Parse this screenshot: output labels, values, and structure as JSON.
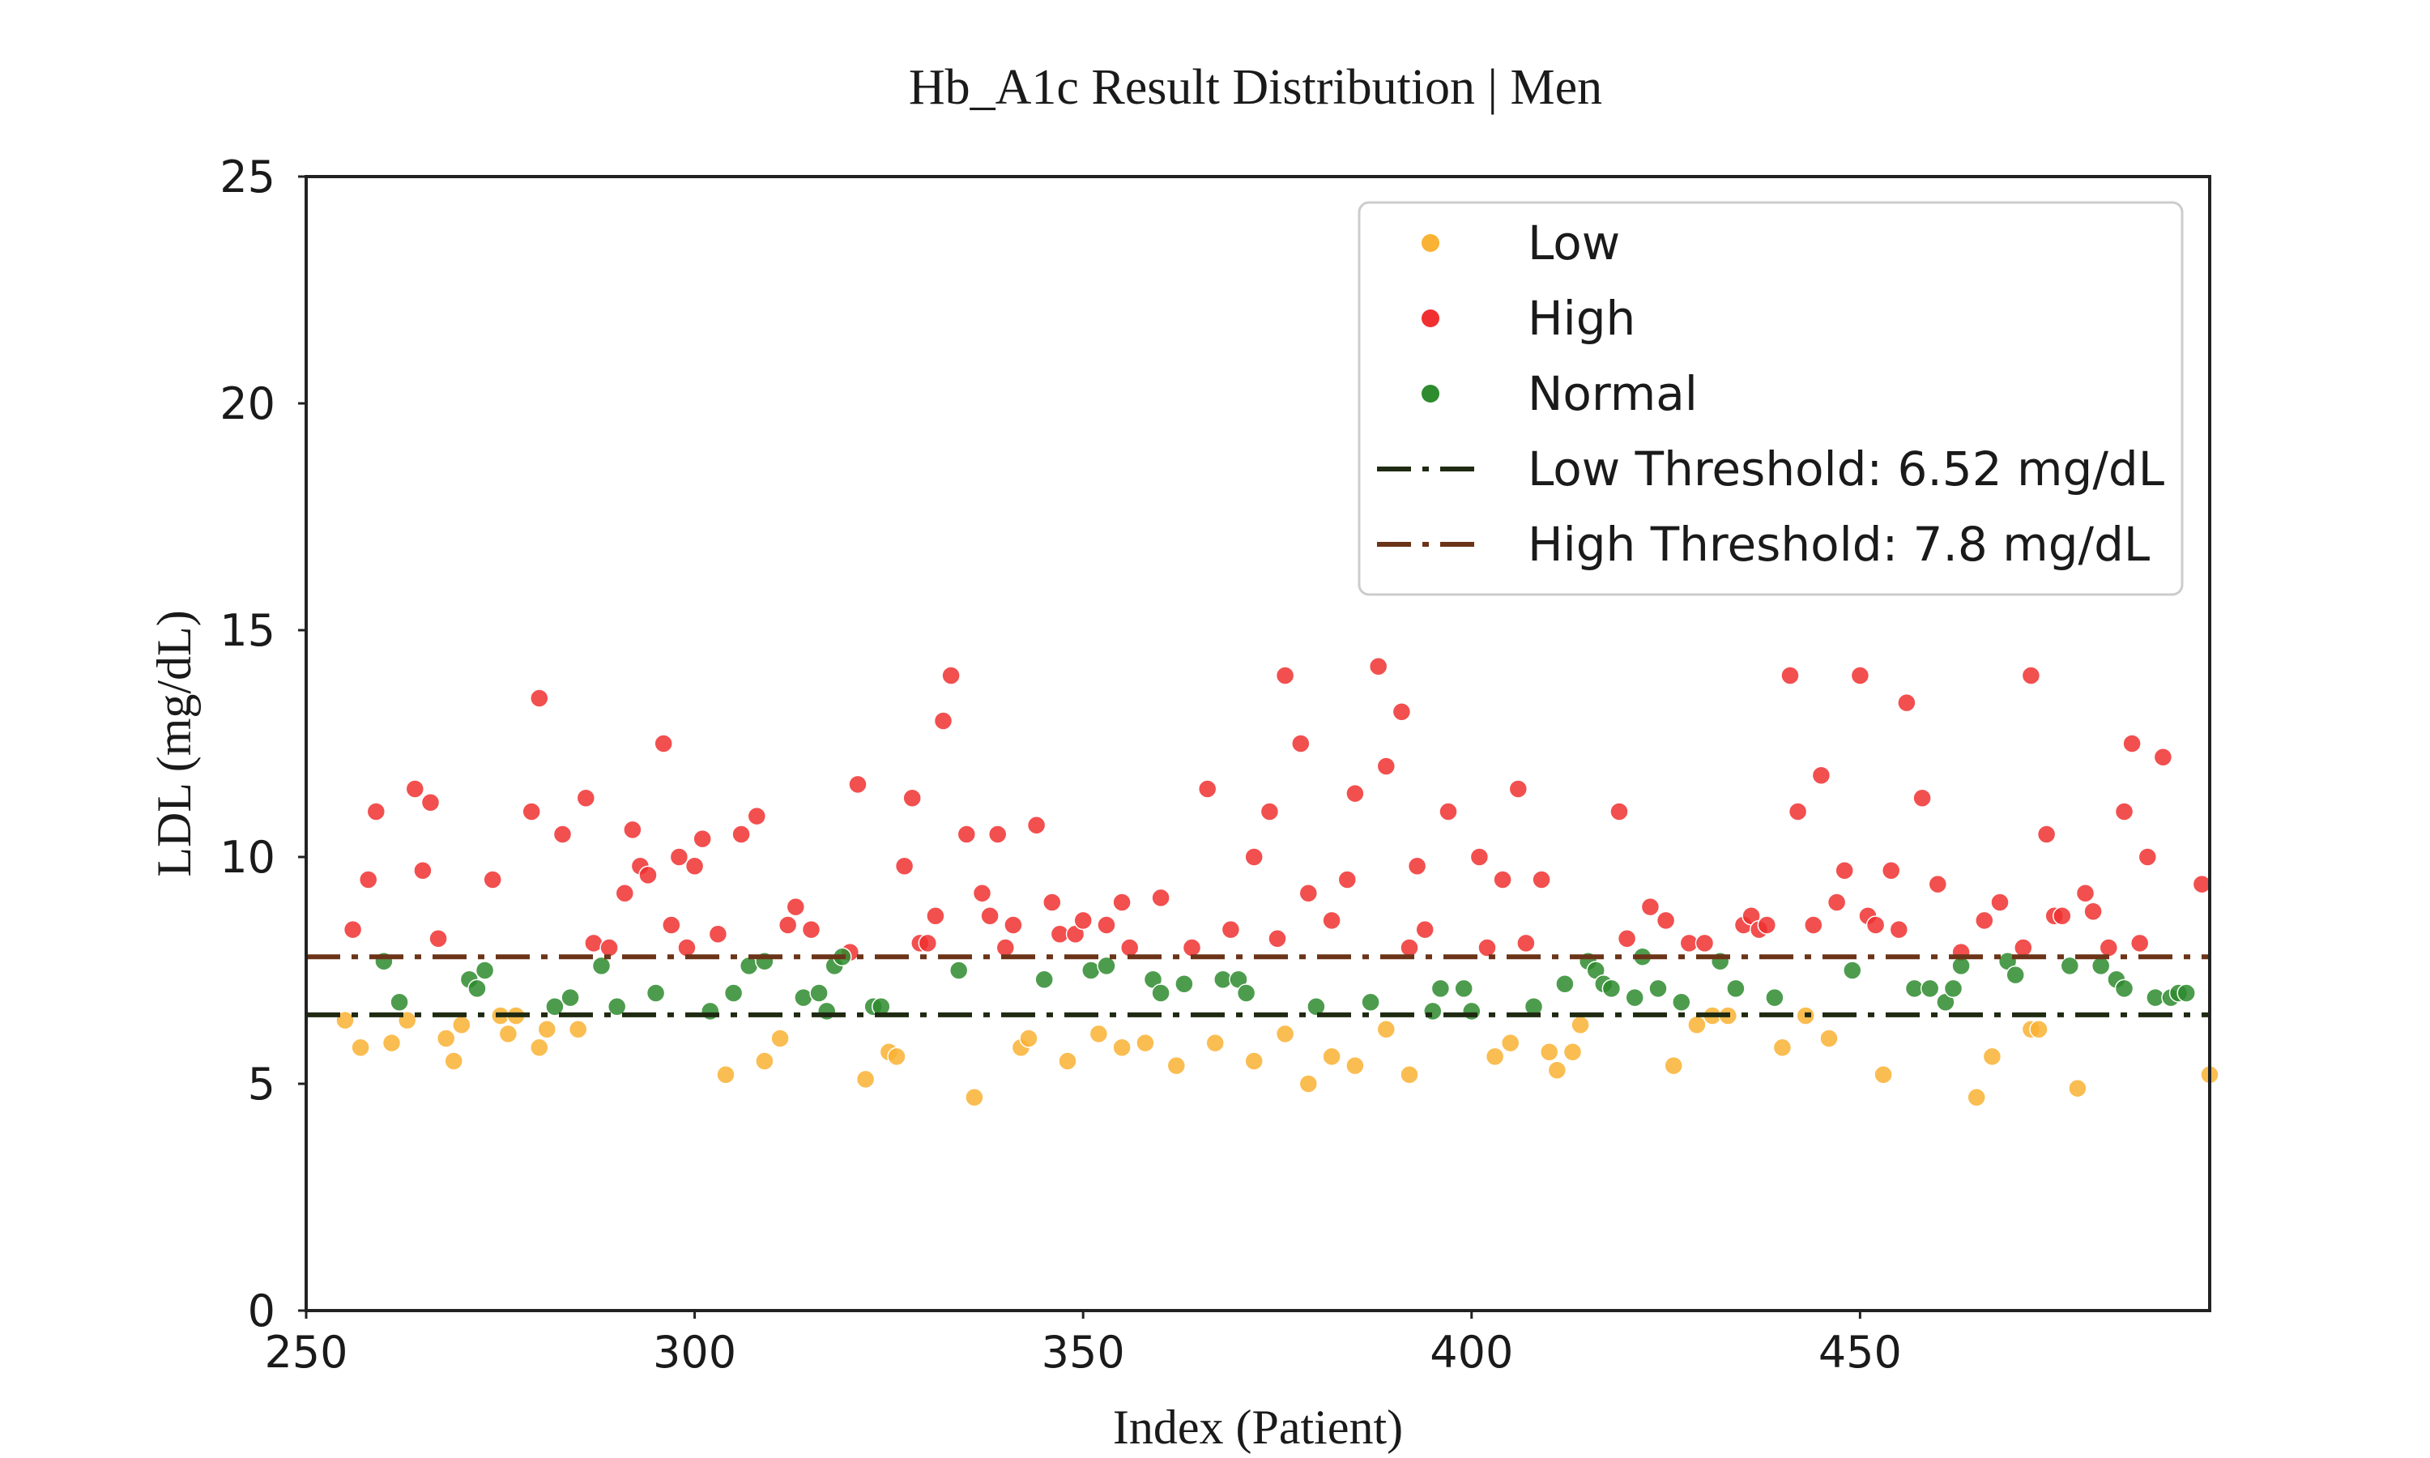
{
  "chart_data": {
    "type": "scatter",
    "title": "Hb_A1c Result Distribution | Men",
    "xlabel": "Index (Patient)",
    "ylabel": "LDL (mg/dL)",
    "xlim": [
      250,
      495
    ],
    "ylim": [
      0,
      25
    ],
    "xticks": [
      250,
      300,
      350,
      400,
      450
    ],
    "yticks": [
      0,
      5,
      10,
      15,
      20,
      25
    ],
    "grid": false,
    "legend_position": "top-right",
    "colors": {
      "Low": "#f9b233",
      "High": "#f03030",
      "Normal": "#2e8b2e",
      "low_threshold": "#1f2a12",
      "high_threshold": "#6b3418"
    },
    "series": [
      {
        "name": "Low",
        "points": [
          [
            255,
            6.4
          ],
          [
            257,
            5.8
          ],
          [
            261,
            5.9
          ],
          [
            263,
            6.4
          ],
          [
            268,
            6.0
          ],
          [
            269,
            5.5
          ],
          [
            270,
            6.3
          ],
          [
            275,
            6.5
          ],
          [
            276,
            6.1
          ],
          [
            277,
            6.5
          ],
          [
            280,
            5.8
          ],
          [
            281,
            6.2
          ],
          [
            285,
            6.2
          ],
          [
            304,
            5.2
          ],
          [
            309,
            5.5
          ],
          [
            311,
            6.0
          ],
          [
            322,
            5.1
          ],
          [
            325,
            5.7
          ],
          [
            326,
            5.6
          ],
          [
            336,
            4.7
          ],
          [
            342,
            5.8
          ],
          [
            343,
            6.0
          ],
          [
            348,
            5.5
          ],
          [
            352,
            6.1
          ],
          [
            355,
            5.8
          ],
          [
            358,
            5.9
          ],
          [
            362,
            5.4
          ],
          [
            367,
            5.9
          ],
          [
            372,
            5.5
          ],
          [
            376,
            6.1
          ],
          [
            379,
            5.0
          ],
          [
            382,
            5.6
          ],
          [
            385,
            5.4
          ],
          [
            389,
            6.2
          ],
          [
            392,
            5.2
          ],
          [
            403,
            5.6
          ],
          [
            405,
            5.9
          ],
          [
            410,
            5.7
          ],
          [
            411,
            5.3
          ],
          [
            413,
            5.7
          ],
          [
            414,
            6.3
          ],
          [
            426,
            5.4
          ],
          [
            429,
            6.3
          ],
          [
            431,
            6.5
          ],
          [
            433,
            6.5
          ],
          [
            440,
            5.8
          ],
          [
            443,
            6.5
          ],
          [
            446,
            6.0
          ],
          [
            453,
            5.2
          ],
          [
            465,
            4.7
          ],
          [
            467,
            5.6
          ],
          [
            472,
            6.2
          ],
          [
            473,
            6.2
          ],
          [
            478,
            4.9
          ],
          [
            495,
            5.2
          ]
        ]
      },
      {
        "name": "High",
        "points": [
          [
            256,
            8.4
          ],
          [
            258,
            9.5
          ],
          [
            259,
            11.0
          ],
          [
            264,
            11.5
          ],
          [
            265,
            9.7
          ],
          [
            266,
            11.2
          ],
          [
            267,
            8.2
          ],
          [
            274,
            9.5
          ],
          [
            279,
            11.0
          ],
          [
            280,
            13.5
          ],
          [
            283,
            10.5
          ],
          [
            286,
            11.3
          ],
          [
            287,
            8.1
          ],
          [
            289,
            8.0
          ],
          [
            291,
            9.2
          ],
          [
            292,
            10.6
          ],
          [
            293,
            9.8
          ],
          [
            294,
            9.6
          ],
          [
            296,
            12.5
          ],
          [
            297,
            8.5
          ],
          [
            298,
            10.0
          ],
          [
            299,
            8.0
          ],
          [
            300,
            9.8
          ],
          [
            301,
            10.4
          ],
          [
            303,
            8.3
          ],
          [
            306,
            10.5
          ],
          [
            308,
            10.9
          ],
          [
            312,
            8.5
          ],
          [
            313,
            8.9
          ],
          [
            315,
            8.4
          ],
          [
            320,
            7.9
          ],
          [
            321,
            11.6
          ],
          [
            327,
            9.8
          ],
          [
            328,
            11.3
          ],
          [
            329,
            8.1
          ],
          [
            330,
            8.1
          ],
          [
            331,
            8.7
          ],
          [
            332,
            13.0
          ],
          [
            333,
            14.0
          ],
          [
            335,
            10.5
          ],
          [
            337,
            9.2
          ],
          [
            338,
            8.7
          ],
          [
            339,
            10.5
          ],
          [
            340,
            8.0
          ],
          [
            341,
            8.5
          ],
          [
            344,
            10.7
          ],
          [
            346,
            9.0
          ],
          [
            347,
            8.3
          ],
          [
            349,
            8.3
          ],
          [
            350,
            8.6
          ],
          [
            353,
            8.5
          ],
          [
            355,
            9.0
          ],
          [
            356,
            8.0
          ],
          [
            360,
            9.1
          ],
          [
            364,
            8.0
          ],
          [
            366,
            11.5
          ],
          [
            369,
            8.4
          ],
          [
            372,
            10.0
          ],
          [
            374,
            11.0
          ],
          [
            375,
            8.2
          ],
          [
            376,
            14.0
          ],
          [
            378,
            12.5
          ],
          [
            379,
            9.2
          ],
          [
            382,
            8.6
          ],
          [
            384,
            9.5
          ],
          [
            385,
            11.4
          ],
          [
            388,
            14.2
          ],
          [
            389,
            12.0
          ],
          [
            391,
            13.2
          ],
          [
            392,
            8.0
          ],
          [
            393,
            9.8
          ],
          [
            394,
            8.4
          ],
          [
            397,
            11.0
          ],
          [
            401,
            10.0
          ],
          [
            402,
            8.0
          ],
          [
            404,
            9.5
          ],
          [
            406,
            11.5
          ],
          [
            407,
            8.1
          ],
          [
            409,
            9.5
          ],
          [
            419,
            11.0
          ],
          [
            420,
            8.2
          ],
          [
            423,
            8.9
          ],
          [
            425,
            8.6
          ],
          [
            428,
            8.1
          ],
          [
            430,
            8.1
          ],
          [
            435,
            8.5
          ],
          [
            436,
            8.7
          ],
          [
            437,
            8.4
          ],
          [
            438,
            8.5
          ],
          [
            441,
            14.0
          ],
          [
            442,
            11.0
          ],
          [
            444,
            8.5
          ],
          [
            445,
            11.8
          ],
          [
            447,
            9.0
          ],
          [
            448,
            9.7
          ],
          [
            450,
            14.0
          ],
          [
            451,
            8.7
          ],
          [
            452,
            8.5
          ],
          [
            454,
            9.7
          ],
          [
            455,
            8.4
          ],
          [
            456,
            13.4
          ],
          [
            458,
            11.3
          ],
          [
            460,
            9.4
          ],
          [
            463,
            7.9
          ],
          [
            466,
            8.6
          ],
          [
            468,
            9.0
          ],
          [
            471,
            8.0
          ],
          [
            472,
            14.0
          ],
          [
            474,
            10.5
          ],
          [
            475,
            8.7
          ],
          [
            476,
            8.7
          ],
          [
            479,
            9.2
          ],
          [
            480,
            8.8
          ],
          [
            482,
            8.0
          ],
          [
            484,
            11.0
          ],
          [
            485,
            12.5
          ],
          [
            486,
            8.1
          ],
          [
            487,
            10.0
          ],
          [
            489,
            12.2
          ],
          [
            494,
            9.4
          ]
        ]
      },
      {
        "name": "Normal",
        "points": [
          [
            260,
            7.7
          ],
          [
            262,
            6.8
          ],
          [
            271,
            7.3
          ],
          [
            272,
            7.1
          ],
          [
            273,
            7.5
          ],
          [
            282,
            6.7
          ],
          [
            284,
            6.9
          ],
          [
            288,
            7.6
          ],
          [
            290,
            6.7
          ],
          [
            295,
            7.0
          ],
          [
            302,
            6.6
          ],
          [
            305,
            7.0
          ],
          [
            307,
            7.6
          ],
          [
            309,
            7.7
          ],
          [
            314,
            6.9
          ],
          [
            316,
            7.0
          ],
          [
            317,
            6.6
          ],
          [
            318,
            7.6
          ],
          [
            319,
            7.8
          ],
          [
            323,
            6.7
          ],
          [
            324,
            6.7
          ],
          [
            334,
            7.5
          ],
          [
            345,
            7.3
          ],
          [
            351,
            7.5
          ],
          [
            353,
            7.6
          ],
          [
            359,
            7.3
          ],
          [
            360,
            7.0
          ],
          [
            363,
            7.2
          ],
          [
            368,
            7.3
          ],
          [
            370,
            7.3
          ],
          [
            371,
            7.0
          ],
          [
            380,
            6.7
          ],
          [
            387,
            6.8
          ],
          [
            395,
            6.6
          ],
          [
            396,
            7.1
          ],
          [
            399,
            7.1
          ],
          [
            400,
            6.6
          ],
          [
            408,
            6.7
          ],
          [
            412,
            7.2
          ],
          [
            415,
            7.7
          ],
          [
            416,
            7.5
          ],
          [
            417,
            7.2
          ],
          [
            418,
            7.1
          ],
          [
            421,
            6.9
          ],
          [
            422,
            7.8
          ],
          [
            424,
            7.1
          ],
          [
            427,
            6.8
          ],
          [
            432,
            7.7
          ],
          [
            434,
            7.1
          ],
          [
            439,
            6.9
          ],
          [
            449,
            7.5
          ],
          [
            457,
            7.1
          ],
          [
            459,
            7.1
          ],
          [
            461,
            6.8
          ],
          [
            462,
            7.1
          ],
          [
            463,
            7.6
          ],
          [
            469,
            7.7
          ],
          [
            470,
            7.4
          ],
          [
            477,
            7.6
          ],
          [
            481,
            7.6
          ],
          [
            483,
            7.3
          ],
          [
            484,
            7.1
          ],
          [
            488,
            6.9
          ],
          [
            490,
            6.9
          ],
          [
            491,
            7.0
          ],
          [
            492,
            7.0
          ]
        ]
      }
    ],
    "thresholds": [
      {
        "name": "Low Threshold: 6.52 mg/dL",
        "value": 6.52,
        "style": "dashdot"
      },
      {
        "name": "High Threshold: 7.8 mg/dL",
        "value": 7.8,
        "style": "dashdot"
      }
    ]
  }
}
